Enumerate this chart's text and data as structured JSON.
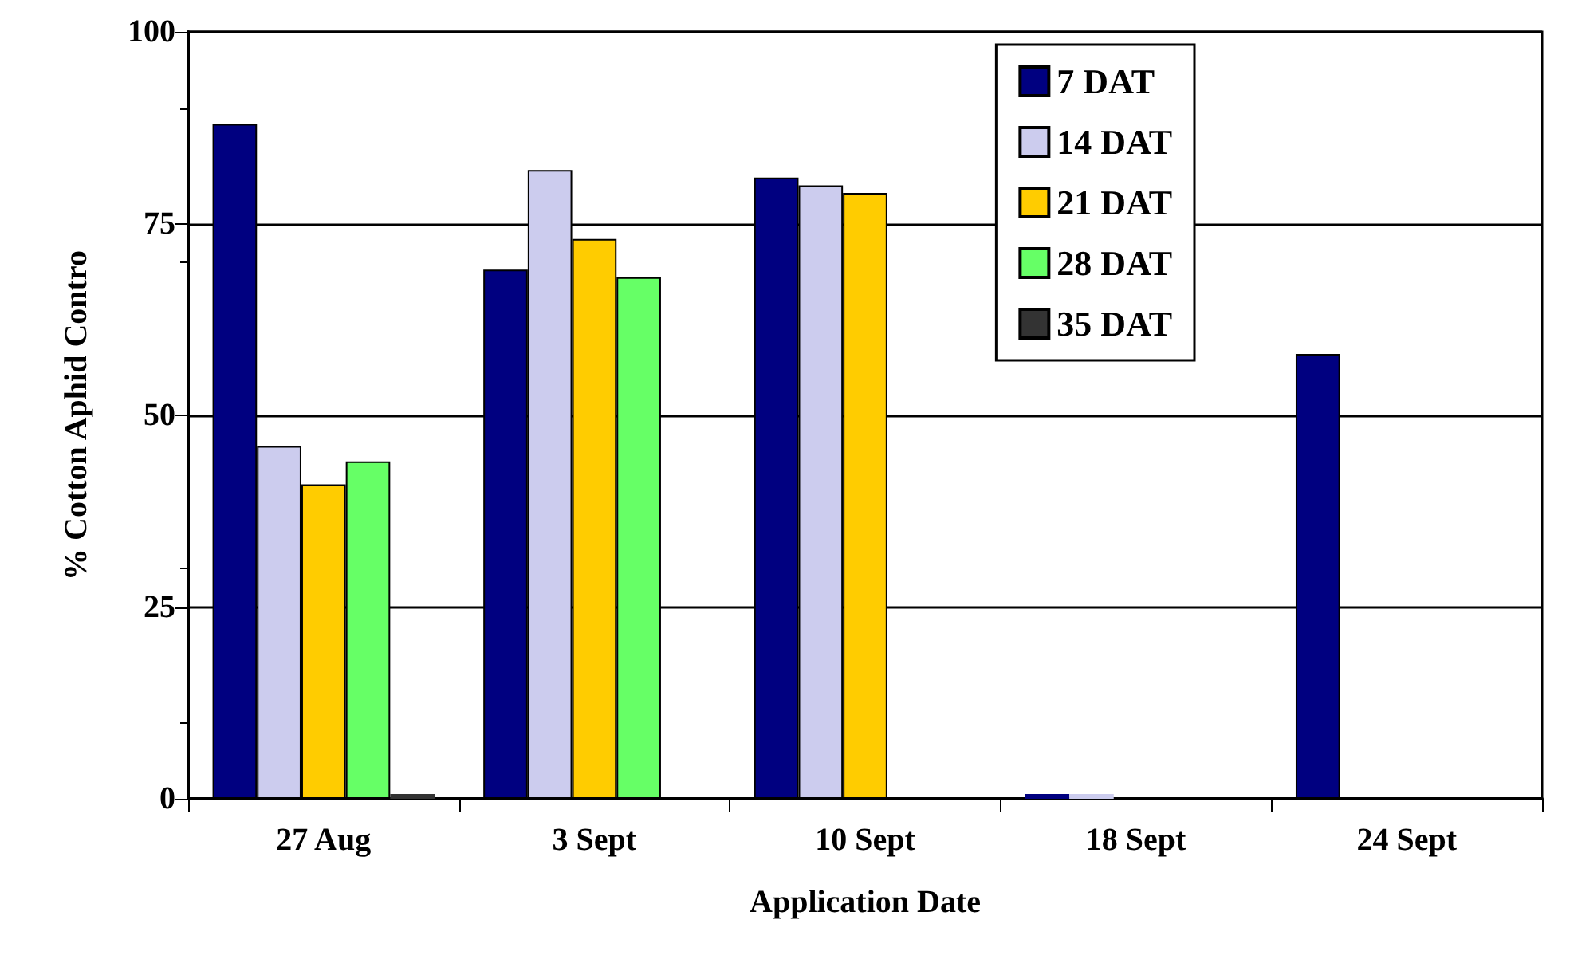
{
  "chart_data": {
    "type": "bar",
    "xlabel": "Application Date",
    "ylabel": "% Cotton Aphid Contro",
    "categories": [
      "27 Aug",
      "3 Sept",
      "10 Sept",
      "18 Sept",
      "24 Sept"
    ],
    "series": [
      {
        "name": "7 DAT",
        "color": "#000080",
        "values": [
          88,
          69,
          81,
          0,
          58
        ]
      },
      {
        "name": "14 DAT",
        "color": "#ccccee",
        "values": [
          46,
          82,
          80,
          0,
          null
        ]
      },
      {
        "name": "21 DAT",
        "color": "#ffcc00",
        "values": [
          41,
          73,
          79,
          null,
          null
        ]
      },
      {
        "name": "28 DAT",
        "color": "#66ff66",
        "values": [
          44,
          68,
          null,
          null,
          null
        ]
      },
      {
        "name": "35 DAT",
        "color": "#333333",
        "values": [
          0,
          null,
          null,
          null,
          null
        ]
      }
    ],
    "ylim": [
      0,
      100
    ],
    "yticks": [
      0,
      25,
      50,
      75,
      100
    ],
    "grid": "y",
    "legend": "top right"
  }
}
